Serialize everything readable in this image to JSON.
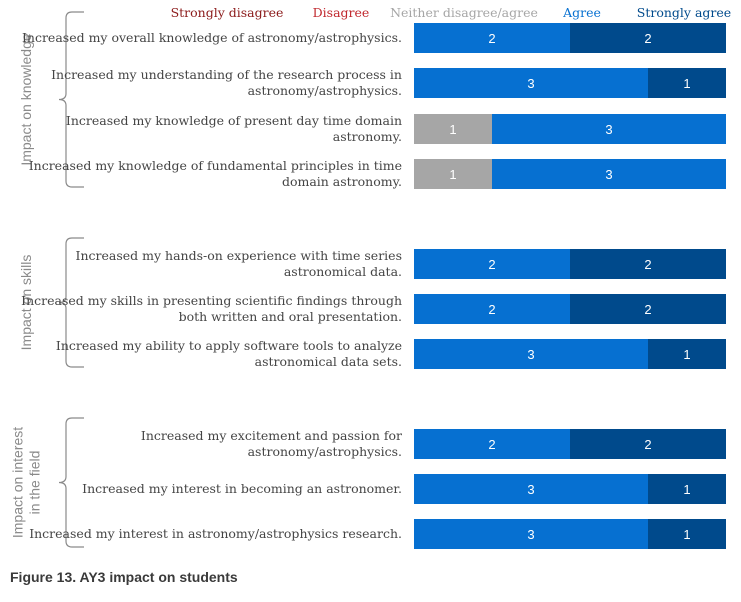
{
  "chart_data": {
    "type": "bar",
    "orientation": "horizontal",
    "stacked": true,
    "legend": [
      {
        "name": "Strongly disagree",
        "color": "#8b1a1a"
      },
      {
        "name": "Disagree",
        "color": "#c0272d"
      },
      {
        "name": "Neither disagree/agree",
        "color": "#a6a6a6"
      },
      {
        "name": "Agree",
        "color": "#0670d1"
      },
      {
        "name": "Strongly agree",
        "color": "#004a8c"
      }
    ],
    "legend_position": "top",
    "max_total": 4,
    "groups": [
      {
        "name": "Impact on knowledge",
        "name_lines": [
          "Impact on knowledge"
        ],
        "items": [
          {
            "label": [
              "Increased my overall knowledge of astronomy/astrophysics."
            ],
            "values": [
              0,
              0,
              0,
              2,
              2
            ]
          },
          {
            "label": [
              "Increased my understanding of the research process in",
              "astronomy/astrophysics."
            ],
            "values": [
              0,
              0,
              0,
              3,
              1
            ]
          },
          {
            "label": [
              "Increased my knowledge of present day time domain",
              "astronomy."
            ],
            "values": [
              0,
              0,
              1,
              3,
              0
            ]
          },
          {
            "label": [
              "Increased my knowledge of fundamental principles in time",
              "domain astronomy."
            ],
            "values": [
              0,
              0,
              1,
              3,
              0
            ]
          }
        ]
      },
      {
        "name": "Impact on skills",
        "name_lines": [
          "Impact on skills"
        ],
        "items": [
          {
            "label": [
              "Increased my hands-on experience with time series",
              "astronomical data."
            ],
            "values": [
              0,
              0,
              0,
              2,
              2
            ]
          },
          {
            "label": [
              "Increased my skills in presenting scientific findings through",
              "both written and oral presentation."
            ],
            "values": [
              0,
              0,
              0,
              2,
              2
            ]
          },
          {
            "label": [
              "Increased my ability to apply software tools to analyze",
              "astronomical data sets."
            ],
            "values": [
              0,
              0,
              0,
              3,
              1
            ]
          }
        ]
      },
      {
        "name": "Impact on interest in the field",
        "name_lines": [
          "Impact on interest",
          "in the field"
        ],
        "items": [
          {
            "label": [
              "Increased my excitement and passion for",
              "astronomy/astrophysics."
            ],
            "values": [
              0,
              0,
              0,
              2,
              2
            ]
          },
          {
            "label": [
              "Increased my interest in becoming an astronomer."
            ],
            "values": [
              0,
              0,
              0,
              3,
              1
            ]
          },
          {
            "label": [
              "Increased my interest in astronomy/astrophysics research."
            ],
            "values": [
              0,
              0,
              0,
              3,
              1
            ]
          }
        ]
      }
    ]
  },
  "caption": "Figure 13. AY3 impact on students"
}
